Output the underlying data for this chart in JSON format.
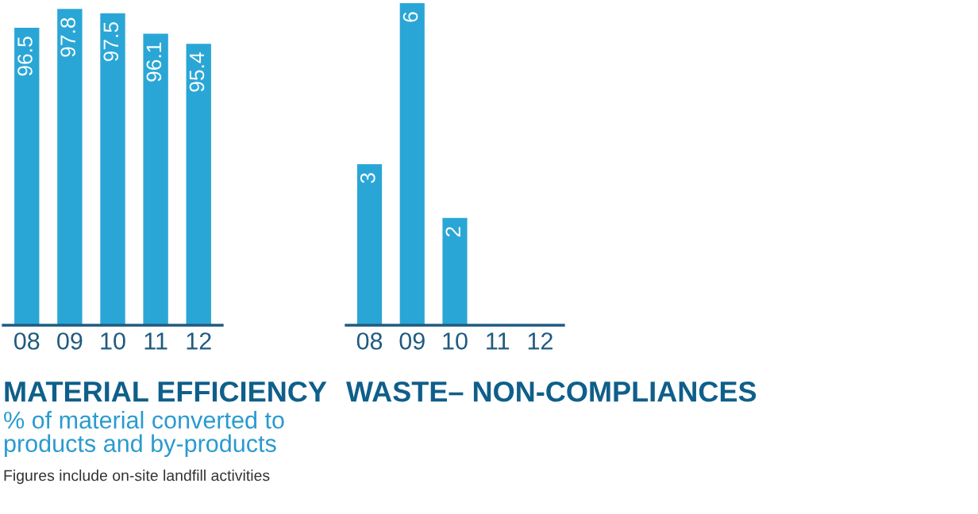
{
  "chart_data": [
    {
      "type": "bar",
      "title": "MATERIAL EFFICIENCY",
      "subtitle": "% of material converted to\nproducts and by-products",
      "annotations": [
        "Figures include on-site landfill activities"
      ],
      "categories": [
        "08",
        "09",
        "10",
        "11",
        "12"
      ],
      "values": [
        96.5,
        97.8,
        97.5,
        96.1,
        95.4
      ],
      "color": "#2aa6d6",
      "data_labels": true,
      "ylim": [
        76,
        98.2
      ],
      "tick_labels": "x",
      "grid": false,
      "legend": false
    },
    {
      "type": "bar",
      "title": "WASTE– NON-COMPLIANCES",
      "categories": [
        "08",
        "09",
        "10",
        "11",
        "12"
      ],
      "values": [
        3,
        6,
        2,
        null,
        null
      ],
      "color": "#2aa6d6",
      "data_labels": true,
      "ylim": [
        0,
        6
      ],
      "tick_labels": "x",
      "grid": false,
      "legend": false
    }
  ]
}
